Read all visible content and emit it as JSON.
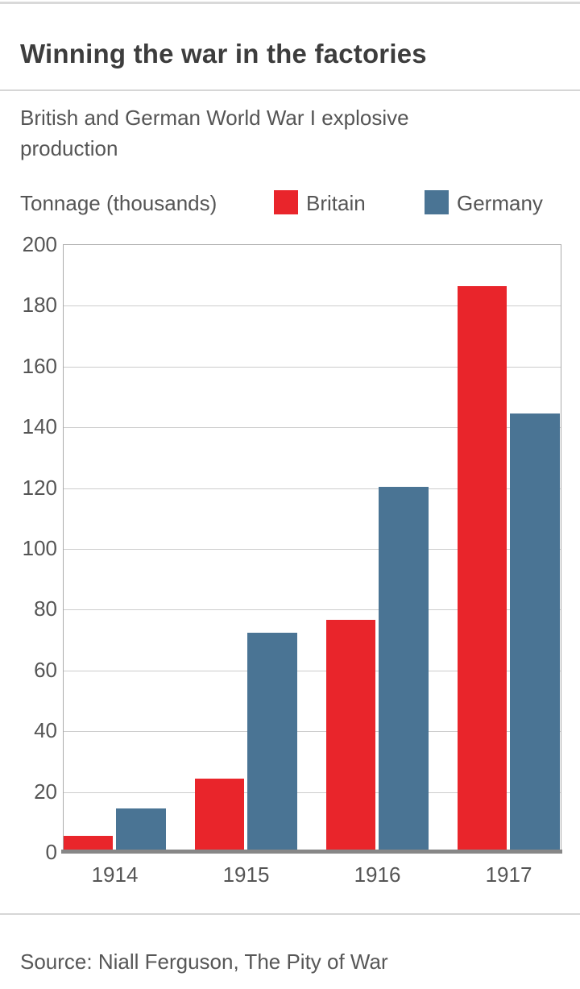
{
  "page": {
    "title": "Winning the war in the factories",
    "subtitle": "British and German World War I explosive production",
    "source": "Source: Niall Ferguson, The Pity of War"
  },
  "chart_data": {
    "type": "bar",
    "title": "Winning the war in the factories",
    "subtitle": "British and German World War I explosive production",
    "yaxis_title": "Tonnage (thousands)",
    "categories": [
      "1914",
      "1915",
      "1916",
      "1917"
    ],
    "series": [
      {
        "name": "Britain",
        "color": "#e9252b",
        "values": [
          5,
          24,
          76,
          186
        ]
      },
      {
        "name": "Germany",
        "color": "#4a7494",
        "values": [
          14,
          72,
          120,
          144
        ]
      }
    ],
    "ylim": [
      0,
      200
    ],
    "ytick_step": 20,
    "grid": true,
    "legend_position": "top",
    "source": "Source: Niall Ferguson, The Pity of War",
    "colors": {
      "britain": "#e9252b",
      "germany": "#4a7494",
      "gridline": "#cccccc",
      "axis_border": "#ababab",
      "baseline": "#878787",
      "title_text": "#3d3d3d",
      "body_text": "#555555"
    }
  }
}
